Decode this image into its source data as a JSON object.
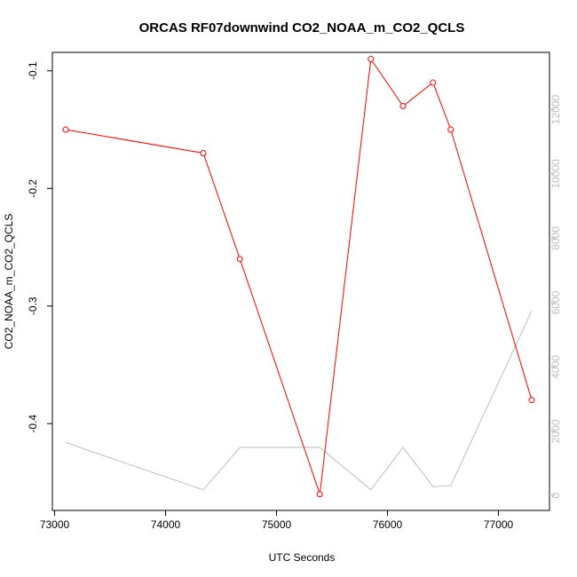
{
  "chart_data": {
    "type": "line",
    "title": "ORCAS RF07downwind CO2_NOAA_m_CO2_QCLS",
    "xlabel": "UTC Seconds",
    "ylabel": "CO2_NOAA_m_CO2_QCLS",
    "xlim": [
      72980,
      77460
    ],
    "ylim": [
      -0.4738,
      -0.0843
    ],
    "y2lim": [
      -460,
      13780
    ],
    "x_ticks": [
      73000,
      74000,
      75000,
      76000,
      77000
    ],
    "y_ticks": [
      -0.4,
      -0.3,
      -0.2,
      -0.1
    ],
    "y2_ticks": [
      0,
      2000,
      4000,
      6000,
      8000,
      10000,
      12000
    ],
    "grid": false,
    "series": [
      {
        "axis": "left",
        "color": "#ff0000",
        "marker": "open-circle",
        "x": [
          73100,
          74340,
          74670,
          75390,
          75850,
          76140,
          76410,
          76570,
          77300
        ],
        "y": [
          -0.15,
          -0.17,
          -0.26,
          -0.46,
          -0.09,
          -0.13,
          -0.11,
          -0.15,
          -0.38
        ]
      },
      {
        "axis": "right",
        "color": "#bebebe",
        "marker": "none",
        "x": [
          73100,
          74340,
          74670,
          75390,
          75850,
          76140,
          76410,
          76570,
          77300
        ],
        "y": [
          1650,
          180,
          1500,
          1500,
          180,
          1500,
          280,
          310,
          5750
        ]
      }
    ]
  }
}
